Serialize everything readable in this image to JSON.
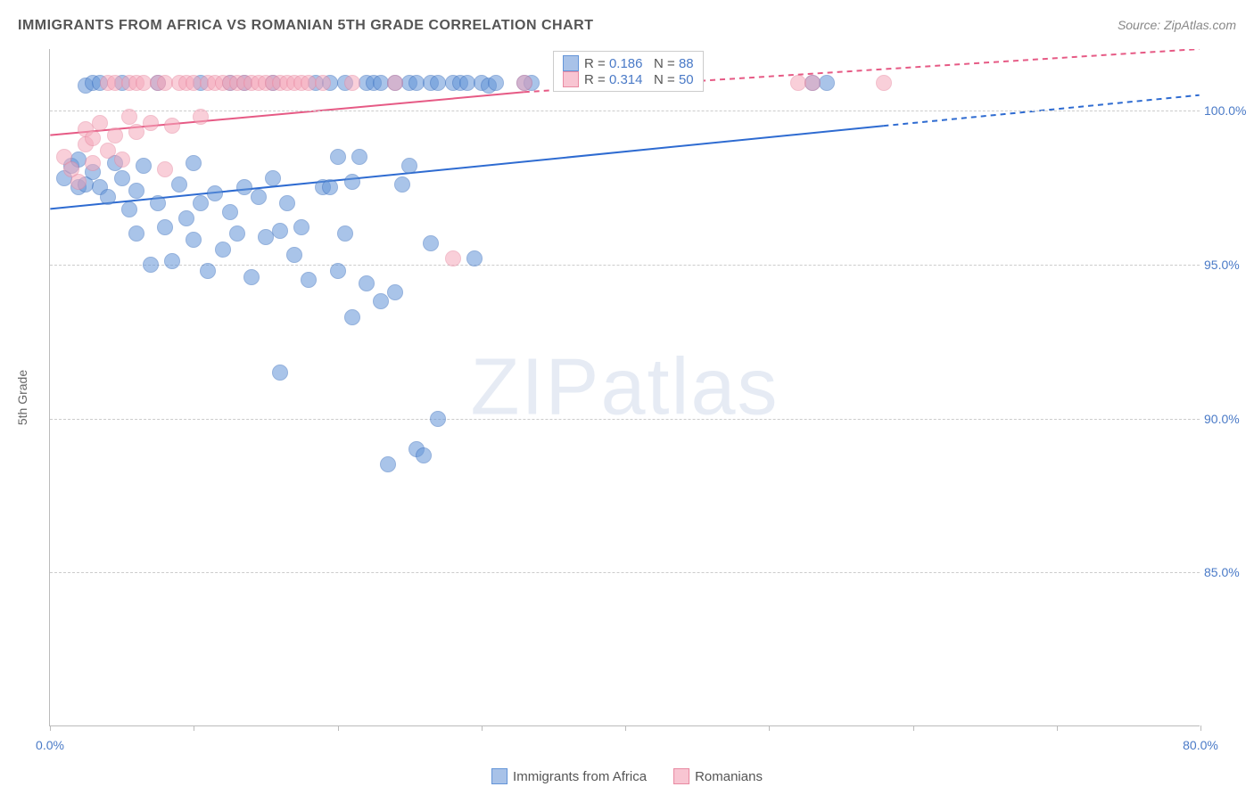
{
  "title": "IMMIGRANTS FROM AFRICA VS ROMANIAN 5TH GRADE CORRELATION CHART",
  "source": "Source: ZipAtlas.com",
  "y_axis_title": "5th Grade",
  "watermark_bold": "ZIP",
  "watermark_light": "atlas",
  "chart": {
    "type": "scatter",
    "xlim": [
      0,
      80
    ],
    "ylim": [
      80,
      102
    ],
    "x_ticks": [
      0,
      10,
      20,
      30,
      40,
      50,
      60,
      70,
      80
    ],
    "x_tick_labels": {
      "0": "0.0%",
      "80": "80.0%"
    },
    "y_gridlines": [
      85,
      90,
      95,
      100
    ],
    "y_tick_labels": {
      "85": "85.0%",
      "90": "90.0%",
      "95": "95.0%",
      "100": "100.0%"
    },
    "background_color": "#ffffff",
    "grid_color": "#cccccc",
    "marker_radius": 9,
    "series": [
      {
        "name": "Immigrants from Africa",
        "color_fill": "#6495d8",
        "color_stroke": "#3d72c0",
        "r": "0.186",
        "n": "88",
        "trend": {
          "x1": 0,
          "y1": 96.8,
          "x2": 58,
          "y2": 99.5,
          "dash_x2": 80,
          "dash_y2": 100.5,
          "color": "#2e6bd1"
        },
        "points": [
          [
            1,
            97.8
          ],
          [
            1.5,
            98.2
          ],
          [
            2,
            97.5
          ],
          [
            2,
            98.4
          ],
          [
            2.5,
            97.6
          ],
          [
            2.5,
            100.8
          ],
          [
            3,
            98.0
          ],
          [
            3,
            100.9
          ],
          [
            3.5,
            97.5
          ],
          [
            3.5,
            100.9
          ],
          [
            4,
            97.2
          ],
          [
            4.5,
            98.3
          ],
          [
            5,
            97.8
          ],
          [
            5,
            100.9
          ],
          [
            5.5,
            96.8
          ],
          [
            6,
            96.0
          ],
          [
            6,
            97.4
          ],
          [
            6.5,
            98.2
          ],
          [
            7,
            95.0
          ],
          [
            7.5,
            97.0
          ],
          [
            7.5,
            100.9
          ],
          [
            8,
            96.2
          ],
          [
            8.5,
            95.1
          ],
          [
            9,
            97.6
          ],
          [
            9.5,
            96.5
          ],
          [
            10,
            95.8
          ],
          [
            10,
            98.3
          ],
          [
            10.5,
            97.0
          ],
          [
            10.5,
            100.9
          ],
          [
            11,
            94.8
          ],
          [
            11.5,
            97.3
          ],
          [
            12,
            95.5
          ],
          [
            12.5,
            96.7
          ],
          [
            12.5,
            100.9
          ],
          [
            13,
            96.0
          ],
          [
            13.5,
            97.5
          ],
          [
            13.5,
            100.9
          ],
          [
            14,
            94.6
          ],
          [
            14.5,
            97.2
          ],
          [
            15,
            95.9
          ],
          [
            15.5,
            97.8
          ],
          [
            15.5,
            100.9
          ],
          [
            16,
            96.1
          ],
          [
            16,
            91.5
          ],
          [
            16.5,
            97.0
          ],
          [
            17,
            95.3
          ],
          [
            17.5,
            96.2
          ],
          [
            18,
            94.5
          ],
          [
            18.5,
            100.9
          ],
          [
            19,
            97.5
          ],
          [
            19.5,
            97.5
          ],
          [
            19.5,
            100.9
          ],
          [
            20,
            94.8
          ],
          [
            20,
            98.5
          ],
          [
            20.5,
            96.0
          ],
          [
            20.5,
            100.9
          ],
          [
            21,
            93.3
          ],
          [
            21,
            97.7
          ],
          [
            21.5,
            98.5
          ],
          [
            22,
            94.4
          ],
          [
            22,
            100.9
          ],
          [
            22.5,
            100.9
          ],
          [
            23,
            93.8
          ],
          [
            23,
            100.9
          ],
          [
            23.5,
            88.5
          ],
          [
            24,
            94.1
          ],
          [
            24,
            100.9
          ],
          [
            24.5,
            97.6
          ],
          [
            25,
            98.2
          ],
          [
            25,
            100.9
          ],
          [
            25.5,
            89.0
          ],
          [
            25.5,
            100.9
          ],
          [
            26,
            88.8
          ],
          [
            26.5,
            95.7
          ],
          [
            26.5,
            100.9
          ],
          [
            27,
            100.9
          ],
          [
            27,
            90.0
          ],
          [
            28,
            100.9
          ],
          [
            28.5,
            100.9
          ],
          [
            29,
            100.9
          ],
          [
            29.5,
            95.2
          ],
          [
            30,
            100.9
          ],
          [
            30.5,
            100.8
          ],
          [
            31,
            100.9
          ],
          [
            33,
            100.9
          ],
          [
            33.5,
            100.9
          ],
          [
            53,
            100.9
          ],
          [
            54,
            100.9
          ]
        ]
      },
      {
        "name": "Romanians",
        "color_fill": "#f5a8bb",
        "color_stroke": "#e88aa2",
        "r": "0.314",
        "n": "50",
        "trend": {
          "x1": 0,
          "y1": 99.2,
          "x2": 33,
          "y2": 100.6,
          "dash_x2": 80,
          "dash_y2": 102,
          "color": "#e65a85"
        },
        "points": [
          [
            1,
            98.5
          ],
          [
            1.5,
            98.1
          ],
          [
            2,
            97.7
          ],
          [
            2.5,
            98.9
          ],
          [
            2.5,
            99.4
          ],
          [
            3,
            98.3
          ],
          [
            3,
            99.1
          ],
          [
            3.5,
            99.6
          ],
          [
            4,
            98.7
          ],
          [
            4,
            100.9
          ],
          [
            4.5,
            99.2
          ],
          [
            4.5,
            100.9
          ],
          [
            5,
            98.4
          ],
          [
            5.5,
            99.8
          ],
          [
            5.5,
            100.9
          ],
          [
            6,
            99.3
          ],
          [
            6,
            100.9
          ],
          [
            6.5,
            100.9
          ],
          [
            7,
            99.6
          ],
          [
            7.5,
            100.9
          ],
          [
            8,
            100.9
          ],
          [
            8,
            98.1
          ],
          [
            8.5,
            99.5
          ],
          [
            9,
            100.9
          ],
          [
            9.5,
            100.9
          ],
          [
            10,
            100.9
          ],
          [
            10.5,
            99.8
          ],
          [
            11,
            100.9
          ],
          [
            11.5,
            100.9
          ],
          [
            12,
            100.9
          ],
          [
            12.5,
            100.9
          ],
          [
            13,
            100.9
          ],
          [
            13.5,
            100.9
          ],
          [
            14,
            100.9
          ],
          [
            14.5,
            100.9
          ],
          [
            15,
            100.9
          ],
          [
            15.5,
            100.9
          ],
          [
            16,
            100.9
          ],
          [
            16.5,
            100.9
          ],
          [
            17,
            100.9
          ],
          [
            17.5,
            100.9
          ],
          [
            18,
            100.9
          ],
          [
            19,
            100.9
          ],
          [
            21,
            100.9
          ],
          [
            24,
            100.9
          ],
          [
            28,
            95.2
          ],
          [
            33,
            100.9
          ],
          [
            52,
            100.9
          ],
          [
            53,
            100.9
          ],
          [
            58,
            100.9
          ]
        ]
      }
    ]
  },
  "legend": {
    "bottom": [
      {
        "swatch": "blue",
        "label": "Immigrants from Africa"
      },
      {
        "swatch": "pink",
        "label": "Romanians"
      }
    ]
  }
}
